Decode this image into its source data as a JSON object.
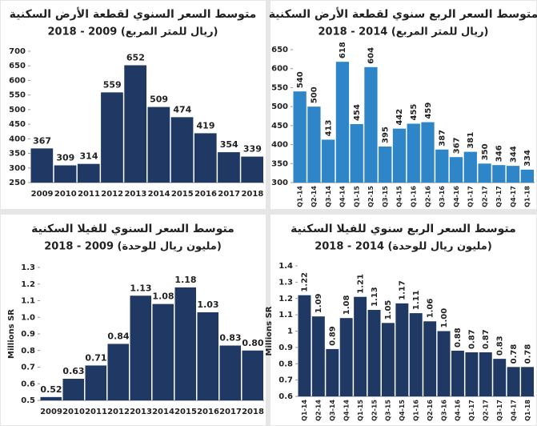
{
  "chart_data": [
    {
      "type": "bar",
      "title": "متوسط السعر السنوي لقطعة الأرض السكنية",
      "subtitle": "(ريال للمتر المربع) 2009 - 2018",
      "categories": [
        "2009",
        "2010",
        "2011",
        "2012",
        "2013",
        "2014",
        "2015",
        "2016",
        "2017",
        "2018"
      ],
      "values": [
        367,
        309,
        314,
        559,
        652,
        509,
        474,
        419,
        354,
        339
      ],
      "color": "#203864",
      "ylim": [
        250,
        700
      ],
      "yticks": [
        250,
        300,
        350,
        400,
        450,
        500,
        550,
        600,
        650,
        700
      ]
    },
    {
      "type": "bar",
      "title": "متوسط السعر الربع سنوي لقطعة الأرض السكنية",
      "subtitle": "(ريال للمتر المربع) 2014 - 2018",
      "categories": [
        "Q1-14",
        "Q2-14",
        "Q3-14",
        "Q4-14",
        "Q1-15",
        "Q2-15",
        "Q3-15",
        "Q4-15",
        "Q1-16",
        "Q2-16",
        "Q3-16",
        "Q4-16",
        "Q1-17",
        "Q2-17",
        "Q3-17",
        "Q4-17",
        "Q1-18"
      ],
      "values": [
        540,
        500,
        413,
        618,
        454,
        604,
        395,
        442,
        455,
        459,
        387,
        367,
        381,
        350,
        346,
        344,
        334
      ],
      "color": "#2e86c8",
      "ylim": [
        300,
        650
      ],
      "yticks": [
        300,
        350,
        400,
        450,
        500,
        550,
        600,
        650
      ]
    },
    {
      "type": "bar",
      "title": "متوسط السعر السنوي للفيلا السكنية",
      "subtitle": "(مليون ريال للوحدة) 2009 - 2018",
      "y_label": "Millions SR",
      "categories": [
        "2009",
        "2010",
        "2011",
        "2012",
        "2013",
        "2014",
        "2015",
        "2016",
        "2017",
        "2018"
      ],
      "values": [
        0.52,
        0.63,
        0.71,
        0.84,
        1.13,
        1.08,
        1.18,
        1.03,
        0.83,
        0.8
      ],
      "value_labels": [
        "0.52",
        "0.63",
        "0.71",
        "0.84",
        "1.13",
        "1.08",
        "1.18",
        "1.03",
        "0.83",
        "0.80"
      ],
      "color": "#203864",
      "ylim": [
        0.5,
        1.3
      ],
      "yticks": [
        0.5,
        0.6,
        0.7,
        0.8,
        0.9,
        {
          "value": 1,
          "label": "1.0"
        },
        1.1,
        1.2,
        1.3
      ]
    },
    {
      "type": "bar",
      "title": "متوسط السعر الربع سنوي للفيلا السكنية",
      "subtitle": "(مليون ريال للوحدة) 2014 - 2018",
      "y_label": "Millions SR",
      "categories": [
        "Q1-14",
        "Q2-14",
        "Q3-14",
        "Q4-14",
        "Q1-15",
        "Q2-15",
        "Q3-15",
        "Q4-15",
        "Q1-16",
        "Q2-16",
        "Q3-16",
        "Q4-16",
        "Q1-17",
        "Q2-17",
        "Q3-17",
        "Q4-17",
        "Q1-18"
      ],
      "values": [
        1.22,
        1.09,
        0.89,
        1.08,
        1.21,
        1.13,
        1.05,
        1.17,
        1.11,
        1.06,
        1,
        0.88,
        0.87,
        0.87,
        0.83,
        0.78,
        0.78
      ],
      "value_labels": [
        "1.22",
        "1.09",
        "0.89",
        "1.08",
        "1.21",
        "1.13",
        "1.05",
        "1.17",
        "1.11",
        "1.06",
        "1.00",
        "0.88",
        "0.87",
        "0.87",
        "0.83",
        "0.78",
        "0.78"
      ],
      "color": "#203864",
      "ylim": [
        0.6,
        1.4
      ],
      "yticks": [
        0.6,
        0.7,
        0.8,
        0.9,
        1,
        1.1,
        1.2,
        1.3,
        1.4
      ]
    }
  ]
}
